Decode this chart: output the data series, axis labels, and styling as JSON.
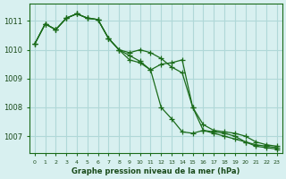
{
  "title": "Graphe pression niveau de la mer (hPa)",
  "background_color": "#d8f0f0",
  "grid_color": "#b0d8d8",
  "line_color": "#1a6b1a",
  "marker_color": "#1a6b1a",
  "x_labels": [
    "0",
    "1",
    "2",
    "3",
    "4",
    "5",
    "6",
    "7",
    "8",
    "9",
    "10",
    "11",
    "12",
    "13",
    "14",
    "15",
    "16",
    "17",
    "18",
    "19",
    "20",
    "21",
    "22",
    "23"
  ],
  "series": [
    [
      1010.2,
      1010.9,
      1010.7,
      1011.1,
      1011.25,
      1011.1,
      1011.05,
      1010.4,
      1010.0,
      1009.8,
      1009.6,
      1009.3,
      1008.0,
      1007.6,
      1007.15,
      1007.1,
      1007.2,
      1007.1,
      1007.0,
      1006.9,
      1006.8,
      1006.7,
      1006.65,
      1006.6
    ],
    [
      1010.2,
      1010.9,
      1010.7,
      1011.1,
      1011.25,
      1011.1,
      1011.05,
      1010.4,
      1010.0,
      1009.65,
      1009.55,
      1009.3,
      1009.5,
      1009.55,
      1009.65,
      1008.0,
      1007.4,
      1007.2,
      1007.15,
      1007.1,
      1007.0,
      1006.8,
      1006.7,
      1006.65
    ],
    [
      1010.2,
      1010.9,
      1010.7,
      1011.1,
      1011.25,
      1011.1,
      1011.05,
      1010.4,
      1010.0,
      1009.9,
      1010.0,
      1009.9,
      1009.7,
      1009.4,
      1009.2,
      1008.0,
      1007.2,
      1007.15,
      1007.1,
      1007.0,
      1006.8,
      1006.65,
      1006.6,
      1006.55
    ]
  ],
  "ylim": [
    1006.4,
    1011.6
  ],
  "yticks": [
    1007,
    1008,
    1009,
    1010,
    1011
  ],
  "xlim": [
    -0.5,
    23.5
  ]
}
